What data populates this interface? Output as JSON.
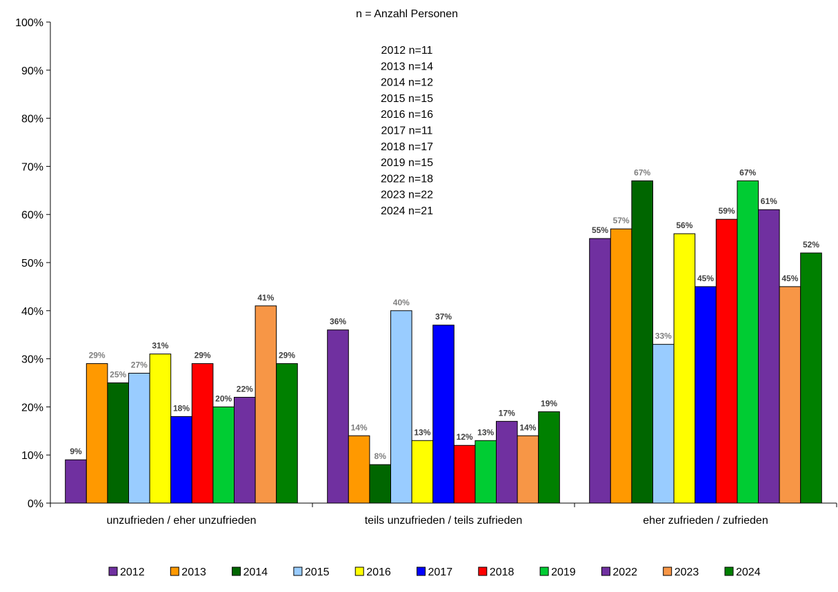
{
  "chart_data": {
    "type": "bar",
    "title": "",
    "xlabel": "",
    "ylabel": "",
    "ylim": [
      0,
      100
    ],
    "yticks": [
      "0%",
      "10%",
      "20%",
      "30%",
      "40%",
      "50%",
      "60%",
      "70%",
      "80%",
      "90%",
      "100%"
    ],
    "grid": false,
    "legend_position": "bottom",
    "categories": [
      "unzufrieden / eher unzufrieden",
      "teils unzufrieden / teils zufrieden",
      "eher zufrieden / zufrieden"
    ],
    "annotation_title": "n = Anzahl Personen",
    "annotation_lines": [
      "2012 n=11",
      "2013 n=14",
      "2014 n=12",
      "2015 n=15",
      "2016 n=16",
      "2017 n=11",
      "2018 n=17",
      "2019 n=15",
      "2022 n=18",
      "2023 n=22",
      "2024 n=21"
    ],
    "series": [
      {
        "name": "2012",
        "color": "#7030a0",
        "values": [
          9,
          36,
          55
        ],
        "labels": [
          "9%",
          "36%",
          "55%"
        ],
        "label_color": "#404040"
      },
      {
        "name": "2013",
        "color": "#ff9900",
        "values": [
          29,
          14,
          57
        ],
        "labels": [
          "29%",
          "14%",
          "57%"
        ],
        "label_color": "#7f7f7f"
      },
      {
        "name": "2014",
        "color": "#006600",
        "values": [
          25,
          8,
          67
        ],
        "labels": [
          "25%",
          "8%",
          "67%"
        ],
        "label_color": "#7f7f7f"
      },
      {
        "name": "2015",
        "color": "#99ccff",
        "values": [
          27,
          40,
          33
        ],
        "labels": [
          "27%",
          "40%",
          "33%"
        ],
        "label_color": "#7f7f7f"
      },
      {
        "name": "2016",
        "color": "#ffff00",
        "values": [
          31,
          13,
          56
        ],
        "labels": [
          "31%",
          "13%",
          "56%"
        ],
        "label_color": "#404040"
      },
      {
        "name": "2017",
        "color": "#0000ff",
        "values": [
          18,
          37,
          45
        ],
        "labels": [
          "18%",
          "37%",
          "45%"
        ],
        "label_color": "#404040"
      },
      {
        "name": "2018",
        "color": "#ff0000",
        "values": [
          29,
          12,
          59
        ],
        "labels": [
          "29%",
          "12%",
          "59%"
        ],
        "label_color": "#404040"
      },
      {
        "name": "2019",
        "color": "#00cc33",
        "values": [
          20,
          13,
          67
        ],
        "labels": [
          "20%",
          "13%",
          "67%"
        ],
        "label_color": "#404040"
      },
      {
        "name": "2022",
        "color": "#7030a0",
        "values": [
          22,
          17,
          61
        ],
        "labels": [
          "22%",
          "17%",
          "61%"
        ],
        "label_color": "#404040"
      },
      {
        "name": "2023",
        "color": "#f79646",
        "values": [
          41,
          14,
          45
        ],
        "labels": [
          "41%",
          "14%",
          "45%"
        ],
        "label_color": "#404040"
      },
      {
        "name": "2024",
        "color": "#008000",
        "values": [
          29,
          19,
          52
        ],
        "labels": [
          "29%",
          "19%",
          "52%"
        ],
        "label_color": "#404040"
      }
    ]
  }
}
